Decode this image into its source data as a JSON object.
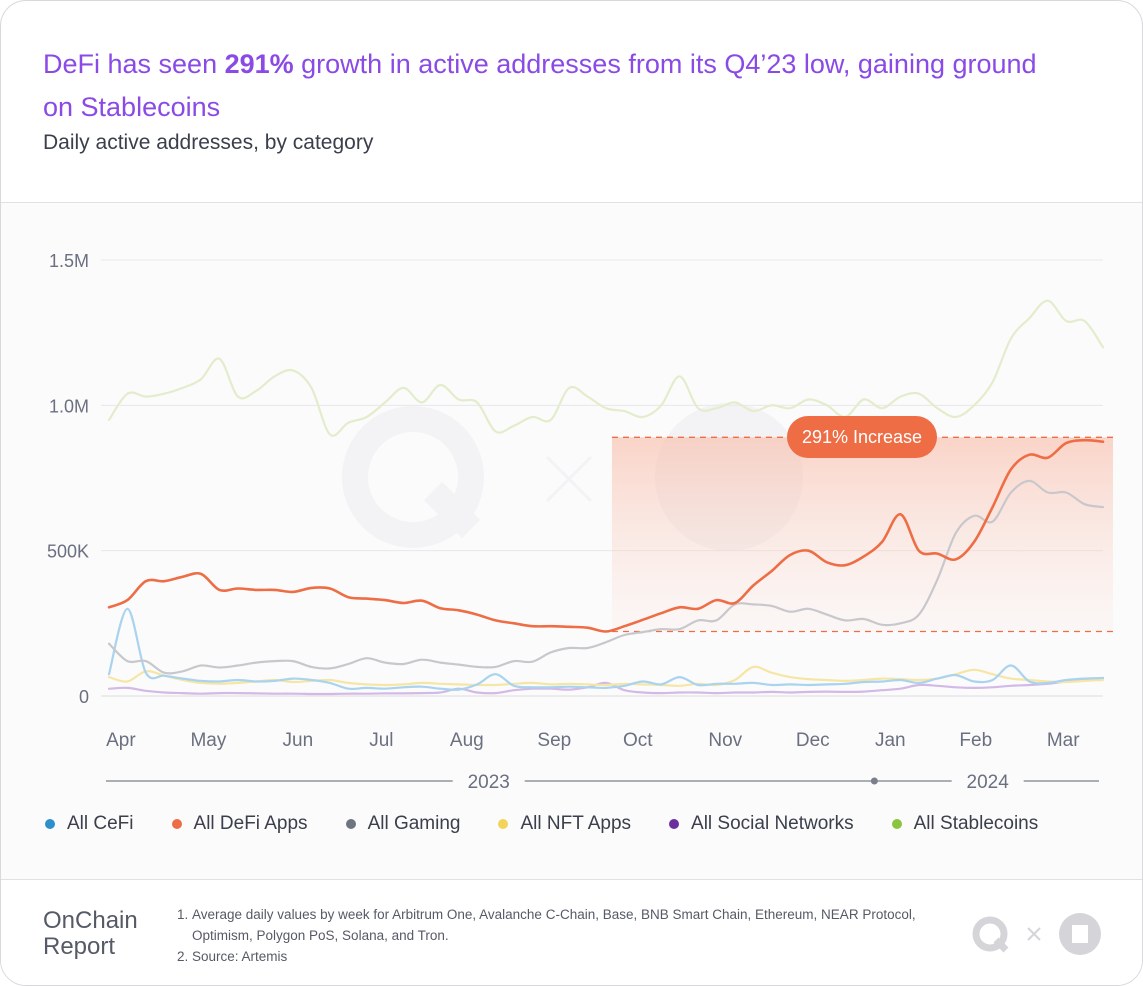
{
  "header": {
    "title_pre": "DeFi has seen ",
    "title_bold": "291%",
    "title_post": " growth in active addresses from its Q4’23 low, gaining ground on Stablecoins",
    "subtitle": "Daily active addresses, by category"
  },
  "annotation": {
    "label": "291% Increase"
  },
  "colors": {
    "All CeFi": "#a9d3ee",
    "All DeFi Apps": "#ee6d45",
    "All Gaming": "#c8c8cc",
    "All NFT Apps": "#f5e6a5",
    "All Social Networks": "#d3b9e6",
    "All Stablecoins": "#e3edcc"
  },
  "legend_colors": {
    "All CeFi": "#2e8fcc",
    "All DeFi Apps": "#ee6d45",
    "All Gaming": "#6e7480",
    "All NFT Apps": "#f2d45c",
    "All Social Networks": "#6b2f9e",
    "All Stablecoins": "#8cc43f"
  },
  "chart_data": {
    "type": "line",
    "title": "Daily active addresses, by category",
    "xlabel": "",
    "ylabel": "",
    "ylim": [
      0,
      1500000
    ],
    "yticks": [
      {
        "value": 0,
        "label": "0"
      },
      {
        "value": 500000,
        "label": "500K"
      },
      {
        "value": 1000000,
        "label": "1.0M"
      },
      {
        "value": 1500000,
        "label": "1.5M"
      }
    ],
    "x_range_weeks": [
      0,
      50
    ],
    "month_ticks": [
      {
        "label": "Apr",
        "week": 0.6
      },
      {
        "label": "May",
        "week": 5.0
      },
      {
        "label": "Jun",
        "week": 9.5
      },
      {
        "label": "Jul",
        "week": 13.7
      },
      {
        "label": "Aug",
        "week": 18.0
      },
      {
        "label": "Sep",
        "week": 22.4
      },
      {
        "label": "Oct",
        "week": 26.6
      },
      {
        "label": "Nov",
        "week": 31.0
      },
      {
        "label": "Dec",
        "week": 35.4
      },
      {
        "label": "Jan",
        "week": 39.3
      },
      {
        "label": "Feb",
        "week": 43.6
      },
      {
        "label": "Mar",
        "week": 48.0
      }
    ],
    "year_labels": [
      {
        "label": "2023",
        "week": 19.1
      },
      {
        "label": "2024",
        "week": 44.2
      }
    ],
    "year_divider_week": 38.5,
    "series": [
      {
        "name": "All Stablecoins",
        "values": [
          950000,
          1040000,
          1030000,
          1040000,
          1060000,
          1090000,
          1160000,
          1030000,
          1050000,
          1100000,
          1120000,
          1060000,
          900000,
          940000,
          960000,
          1010000,
          1060000,
          1010000,
          1070000,
          1020000,
          1010000,
          910000,
          930000,
          960000,
          950000,
          1060000,
          1030000,
          990000,
          980000,
          960000,
          1000000,
          1100000,
          990000,
          990000,
          1010000,
          980000,
          1000000,
          990000,
          1020000,
          1000000,
          960000,
          1020000,
          990000,
          1030000,
          1040000,
          990000,
          960000,
          1000000,
          1080000,
          1230000,
          1300000,
          1360000,
          1290000,
          1290000,
          1200000
        ]
      },
      {
        "name": "All DeFi Apps",
        "values": [
          305000,
          330000,
          395000,
          395000,
          410000,
          420000,
          365000,
          370000,
          365000,
          365000,
          358000,
          372000,
          370000,
          340000,
          335000,
          330000,
          320000,
          328000,
          302000,
          295000,
          280000,
          260000,
          250000,
          240000,
          240000,
          238000,
          235000,
          222000,
          240000,
          262000,
          285000,
          305000,
          300000,
          330000,
          320000,
          380000,
          430000,
          485000,
          500000,
          460000,
          450000,
          480000,
          530000,
          625000,
          500000,
          490000,
          470000,
          530000,
          650000,
          780000,
          830000,
          820000,
          870000,
          880000,
          875000
        ]
      },
      {
        "name": "All Gaming",
        "values": [
          180000,
          120000,
          120000,
          80000,
          85000,
          105000,
          98000,
          105000,
          115000,
          120000,
          120000,
          100000,
          95000,
          110000,
          130000,
          115000,
          110000,
          125000,
          115000,
          108000,
          100000,
          100000,
          120000,
          118000,
          150000,
          165000,
          165000,
          185000,
          210000,
          220000,
          230000,
          230000,
          260000,
          260000,
          315000,
          315000,
          310000,
          290000,
          300000,
          280000,
          260000,
          265000,
          245000,
          250000,
          280000,
          400000,
          560000,
          620000,
          600000,
          700000,
          740000,
          700000,
          700000,
          660000,
          650000
        ]
      },
      {
        "name": "All CeFi",
        "values": [
          75000,
          300000,
          80000,
          70000,
          60000,
          52000,
          50000,
          55000,
          50000,
          52000,
          60000,
          55000,
          45000,
          25000,
          28000,
          25000,
          30000,
          32000,
          25000,
          22000,
          40000,
          75000,
          35000,
          30000,
          30000,
          32000,
          30000,
          28000,
          35000,
          50000,
          40000,
          65000,
          38000,
          42000,
          42000,
          45000,
          38000,
          40000,
          38000,
          40000,
          42000,
          48000,
          50000,
          55000,
          45000,
          60000,
          72000,
          50000,
          55000,
          105000,
          50000,
          45000,
          55000,
          60000,
          62000
        ]
      },
      {
        "name": "All NFT Apps",
        "values": [
          65000,
          50000,
          85000,
          70000,
          55000,
          45000,
          42000,
          45000,
          50000,
          55000,
          48000,
          52000,
          55000,
          45000,
          40000,
          38000,
          40000,
          45000,
          42000,
          40000,
          38000,
          38000,
          42000,
          45000,
          40000,
          42000,
          40000,
          38000,
          42000,
          40000,
          38000,
          35000,
          42000,
          38000,
          55000,
          100000,
          80000,
          65000,
          58000,
          55000,
          52000,
          55000,
          60000,
          58000,
          55000,
          60000,
          75000,
          90000,
          75000,
          60000,
          55000,
          50000,
          48000,
          52000,
          55000
        ]
      },
      {
        "name": "All Social Networks",
        "values": [
          25000,
          28000,
          18000,
          12000,
          10000,
          8000,
          10000,
          10000,
          9000,
          8000,
          8000,
          7000,
          7000,
          8000,
          8000,
          9000,
          9000,
          10000,
          12000,
          25000,
          12000,
          10000,
          20000,
          25000,
          25000,
          22000,
          30000,
          45000,
          20000,
          12000,
          10000,
          12000,
          12000,
          10000,
          12000,
          12000,
          14000,
          12000,
          14000,
          15000,
          14000,
          15000,
          20000,
          25000,
          38000,
          35000,
          30000,
          28000,
          30000,
          35000,
          38000,
          42000,
          50000,
          55000,
          62000
        ]
      }
    ],
    "highlight_band": {
      "low": 222000,
      "high": 890000,
      "from_week": 25.3,
      "to_week": 50
    },
    "legend": [
      "All CeFi",
      "All DeFi Apps",
      "All Gaming",
      "All NFT Apps",
      "All Social Networks",
      "All Stablecoins"
    ],
    "legend_position": "bottom"
  },
  "footer": {
    "brand_line1": "OnChain",
    "brand_line2": "Report",
    "notes": [
      {
        "num": "1.",
        "text": "Average daily values by week for Arbitrum One, Avalanche C-Chain, Base, BNB Smart Chain, Ethereum, NEAR Protocol, Optimism, Polygon PoS, Solana, and Tron."
      },
      {
        "num": "2.",
        "text": "Source: Artemis"
      }
    ]
  }
}
